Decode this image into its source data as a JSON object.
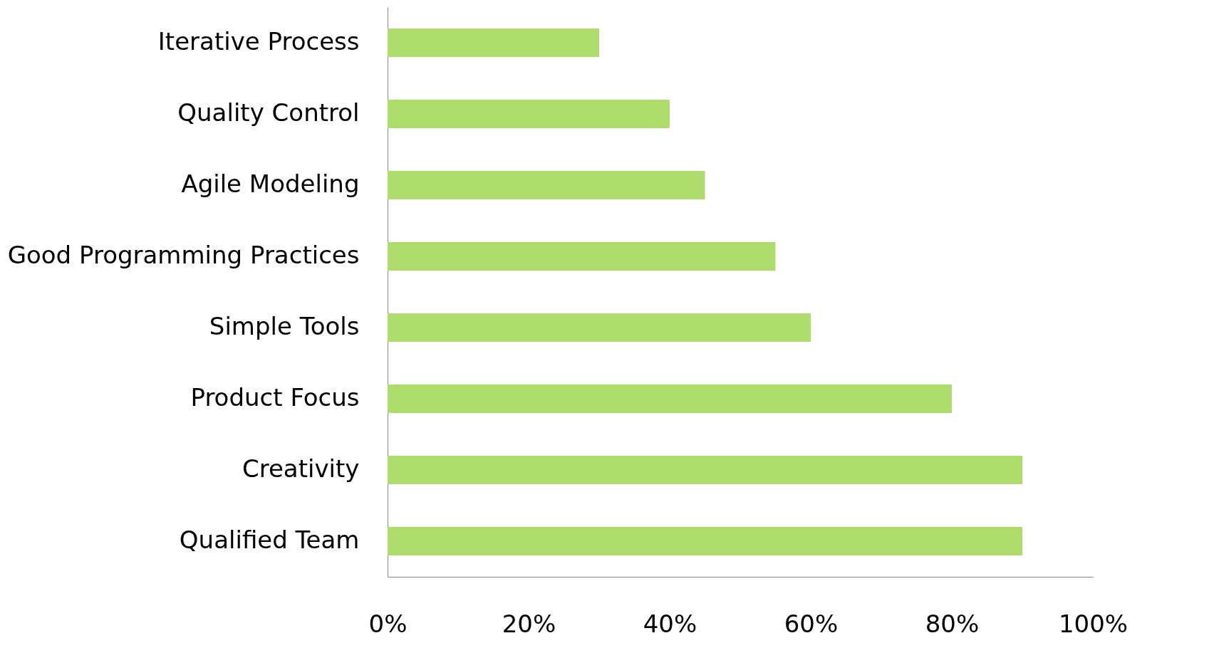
{
  "chart_data": {
    "type": "bar",
    "orientation": "horizontal",
    "categories": [
      "Iterative Process",
      "Quality Control",
      "Agile Modeling",
      "Good Programming Practices",
      "Simple Tools",
      "Product Focus",
      "Creativity",
      "Qualified Team"
    ],
    "values": [
      30,
      40,
      45,
      55,
      60,
      80,
      90,
      90
    ],
    "color": "#addc6c",
    "xlim": [
      0,
      100
    ],
    "xticks": [
      {
        "value": 0,
        "label": "0%"
      },
      {
        "value": 20,
        "label": "20%"
      },
      {
        "value": 40,
        "label": "40%"
      },
      {
        "value": 60,
        "label": "60%"
      },
      {
        "value": 80,
        "label": "80%"
      },
      {
        "value": 100,
        "label": "100%"
      }
    ],
    "grid": false
  }
}
